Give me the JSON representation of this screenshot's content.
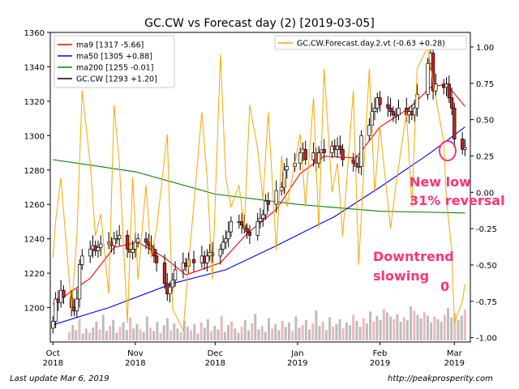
{
  "chart_data": {
    "type": "line",
    "title": "GC.CW vs Forecast day (2)  [2019-03-05]",
    "x_tick_labels": [
      {
        "month": "Oct",
        "year": "2018",
        "date": "2018-10-01"
      },
      {
        "month": "Nov",
        "year": "2018",
        "date": "2018-11-01"
      },
      {
        "month": "Dec",
        "year": "2018",
        "date": "2018-12-01"
      },
      {
        "month": "Jan",
        "year": "2019",
        "date": "2019-01-01"
      },
      {
        "month": "Feb",
        "year": "2019",
        "date": "2019-02-01"
      },
      {
        "month": "Mar",
        "year": "2019",
        "date": "2019-03-01"
      }
    ],
    "xlim": [
      "2018-09-30",
      "2019-03-07"
    ],
    "y_left": {
      "ylim": [
        1180,
        1360
      ],
      "ticks": [
        "1200",
        "1220",
        "1240",
        "1260",
        "1280",
        "1300",
        "1320",
        "1340",
        "1360"
      ]
    },
    "y_right": {
      "ylim": [
        -1.03,
        1.1
      ],
      "ticks": [
        "-1.00",
        "-0.75",
        "-0.50",
        "-0.25",
        "0.00",
        "0.25",
        "0.50",
        "0.75",
        "1.00"
      ]
    },
    "grid": false,
    "legend_left": [
      {
        "label": "ma9 [1317 -5.66]",
        "color": "#ff0000"
      },
      {
        "label": "ma50 [1305 +0.88]",
        "color": "#0000ff"
      },
      {
        "label": "ma200 [1255 -0.01]",
        "color": "#008000"
      },
      {
        "label": "GC.CW [1293 +1.20]",
        "color": "#000000"
      }
    ],
    "legend_right": [
      {
        "label": "GC.CW.Forecast.day.2.vt (-0.63 +0.28)",
        "color": "#ffa500"
      }
    ],
    "series": [
      {
        "name": "GC.CW",
        "kind": "candlestick_close",
        "values": [
          [
            "2018-10-01",
            1192
          ],
          [
            "2018-10-02",
            1205
          ],
          [
            "2018-10-03",
            1203
          ],
          [
            "2018-10-04",
            1210
          ],
          [
            "2018-10-05",
            1206
          ],
          [
            "2018-10-08",
            1200
          ],
          [
            "2018-10-09",
            1198
          ],
          [
            "2018-10-10",
            1205
          ],
          [
            "2018-10-11",
            1225
          ],
          [
            "2018-10-12",
            1230
          ],
          [
            "2018-10-15",
            1234
          ],
          [
            "2018-10-16",
            1236
          ],
          [
            "2018-10-17",
            1233
          ],
          [
            "2018-10-18",
            1235
          ],
          [
            "2018-10-19",
            1237
          ],
          [
            "2018-10-22",
            1238
          ],
          [
            "2018-10-23",
            1236
          ],
          [
            "2018-10-24",
            1240
          ],
          [
            "2018-10-25",
            1240
          ],
          [
            "2018-10-26",
            1242
          ],
          [
            "2018-10-29",
            1234
          ],
          [
            "2018-10-30",
            1232
          ],
          [
            "2018-10-31",
            1234
          ],
          [
            "2018-11-01",
            1238
          ],
          [
            "2018-11-02",
            1240
          ],
          [
            "2018-11-05",
            1238
          ],
          [
            "2018-11-06",
            1236
          ],
          [
            "2018-11-07",
            1234
          ],
          [
            "2018-11-08",
            1230
          ],
          [
            "2018-11-09",
            1226
          ],
          [
            "2018-11-12",
            1214
          ],
          [
            "2018-11-13",
            1208
          ],
          [
            "2018-11-14",
            1212
          ],
          [
            "2018-11-15",
            1216
          ],
          [
            "2018-11-16",
            1222
          ],
          [
            "2018-11-19",
            1226
          ],
          [
            "2018-11-20",
            1224
          ],
          [
            "2018-11-21",
            1228
          ],
          [
            "2018-11-23",
            1226
          ],
          [
            "2018-11-26",
            1230
          ],
          [
            "2018-11-27",
            1226
          ],
          [
            "2018-11-28",
            1230
          ],
          [
            "2018-11-29",
            1232
          ],
          [
            "2018-11-30",
            1230
          ],
          [
            "2018-12-03",
            1234
          ],
          [
            "2018-12-04",
            1238
          ],
          [
            "2018-12-05",
            1240
          ],
          [
            "2018-12-06",
            1244
          ],
          [
            "2018-12-07",
            1250
          ],
          [
            "2018-12-10",
            1250
          ],
          [
            "2018-12-11",
            1248
          ],
          [
            "2018-12-12",
            1246
          ],
          [
            "2018-12-13",
            1244
          ],
          [
            "2018-12-14",
            1242
          ],
          [
            "2018-12-17",
            1250
          ],
          [
            "2018-12-18",
            1252
          ],
          [
            "2018-12-19",
            1254
          ],
          [
            "2018-12-20",
            1262
          ],
          [
            "2018-12-21",
            1260
          ],
          [
            "2018-12-24",
            1268
          ],
          [
            "2018-12-26",
            1270
          ],
          [
            "2018-12-27",
            1280
          ],
          [
            "2018-12-28",
            1282
          ],
          [
            "2018-12-31",
            1284
          ],
          [
            "2019-01-02",
            1290
          ],
          [
            "2019-01-03",
            1292
          ],
          [
            "2019-01-04",
            1286
          ],
          [
            "2019-01-07",
            1290
          ],
          [
            "2019-01-08",
            1284
          ],
          [
            "2019-01-09",
            1290
          ],
          [
            "2019-01-10",
            1292
          ],
          [
            "2019-01-11",
            1290
          ],
          [
            "2019-01-14",
            1294
          ],
          [
            "2019-01-15",
            1292
          ],
          [
            "2019-01-16",
            1294
          ],
          [
            "2019-01-17",
            1292
          ],
          [
            "2019-01-18",
            1286
          ],
          [
            "2019-01-22",
            1284
          ],
          [
            "2019-01-23",
            1282
          ],
          [
            "2019-01-24",
            1282
          ],
          [
            "2019-01-25",
            1300
          ],
          [
            "2019-01-28",
            1306
          ],
          [
            "2019-01-29",
            1314
          ],
          [
            "2019-01-30",
            1316
          ],
          [
            "2019-01-31",
            1322
          ],
          [
            "2019-02-01",
            1318
          ],
          [
            "2019-02-04",
            1316
          ],
          [
            "2019-02-05",
            1314
          ],
          [
            "2019-02-06",
            1312
          ],
          [
            "2019-02-07",
            1312
          ],
          [
            "2019-02-08",
            1316
          ],
          [
            "2019-02-11",
            1312
          ],
          [
            "2019-02-12",
            1314
          ],
          [
            "2019-02-13",
            1312
          ],
          [
            "2019-02-14",
            1316
          ],
          [
            "2019-02-15",
            1324
          ],
          [
            "2019-02-19",
            1342
          ],
          [
            "2019-02-20",
            1348
          ],
          [
            "2019-02-21",
            1326
          ],
          [
            "2019-02-22",
            1330
          ],
          [
            "2019-02-25",
            1328
          ],
          [
            "2019-02-26",
            1330
          ],
          [
            "2019-02-27",
            1322
          ],
          [
            "2019-02-28",
            1316
          ],
          [
            "2019-03-01",
            1298
          ],
          [
            "2019-03-04",
            1292
          ],
          [
            "2019-03-05",
            1293
          ]
        ]
      },
      {
        "name": "ma9",
        "values": [
          [
            "2018-10-01",
            1202
          ],
          [
            "2018-10-15",
            1217
          ],
          [
            "2018-10-24",
            1235
          ],
          [
            "2018-11-02",
            1238
          ],
          [
            "2018-11-12",
            1229
          ],
          [
            "2018-11-20",
            1219
          ],
          [
            "2018-12-03",
            1226
          ],
          [
            "2018-12-13",
            1243
          ],
          [
            "2018-12-24",
            1257
          ],
          [
            "2019-01-02",
            1278
          ],
          [
            "2019-01-11",
            1288
          ],
          [
            "2019-01-23",
            1287
          ],
          [
            "2019-02-01",
            1305
          ],
          [
            "2019-02-12",
            1316
          ],
          [
            "2019-02-20",
            1328
          ],
          [
            "2019-02-26",
            1330
          ],
          [
            "2019-03-05",
            1317
          ]
        ]
      },
      {
        "name": "ma50",
        "values": [
          [
            "2018-10-01",
            1190
          ],
          [
            "2018-10-22",
            1200
          ],
          [
            "2018-11-15",
            1214
          ],
          [
            "2018-12-05",
            1222
          ],
          [
            "2018-12-24",
            1236
          ],
          [
            "2019-01-15",
            1253
          ],
          [
            "2019-02-01",
            1270
          ],
          [
            "2019-02-20",
            1290
          ],
          [
            "2019-03-05",
            1305
          ]
        ]
      },
      {
        "name": "ma200",
        "values": [
          [
            "2018-10-01",
            1286
          ],
          [
            "2018-11-01",
            1279
          ],
          [
            "2018-12-01",
            1266
          ],
          [
            "2019-01-01",
            1260
          ],
          [
            "2019-02-01",
            1256
          ],
          [
            "2019-03-05",
            1255
          ]
        ]
      },
      {
        "name": "GC.CW.Forecast.day.2.vt",
        "axis": "right",
        "values": [
          [
            "2018-10-01",
            -0.45
          ],
          [
            "2018-10-02",
            -0.2
          ],
          [
            "2018-10-04",
            0.1
          ],
          [
            "2018-10-08",
            -0.8
          ],
          [
            "2018-10-10",
            -0.3
          ],
          [
            "2018-10-12",
            0.7
          ],
          [
            "2018-10-15",
            0.2
          ],
          [
            "2018-10-17",
            -0.3
          ],
          [
            "2018-10-19",
            -0.15
          ],
          [
            "2018-10-22",
            -0.7
          ],
          [
            "2018-10-24",
            0.6
          ],
          [
            "2018-10-26",
            0.2
          ],
          [
            "2018-10-29",
            -0.9
          ],
          [
            "2018-10-31",
            0.1
          ],
          [
            "2018-11-02",
            -0.6
          ],
          [
            "2018-11-05",
            0.05
          ],
          [
            "2018-11-07",
            -0.45
          ],
          [
            "2018-11-09",
            -0.25
          ],
          [
            "2018-11-13",
            0.4
          ],
          [
            "2018-11-15",
            -0.8
          ],
          [
            "2018-11-19",
            -0.95
          ],
          [
            "2018-11-21",
            -0.5
          ],
          [
            "2018-11-26",
            0.55
          ],
          [
            "2018-11-28",
            0.1
          ],
          [
            "2018-11-30",
            -0.6
          ],
          [
            "2018-12-03",
            0.95
          ],
          [
            "2018-12-05",
            0.1
          ],
          [
            "2018-12-07",
            -0.1
          ],
          [
            "2018-12-10",
            0.05
          ],
          [
            "2018-12-12",
            -0.25
          ],
          [
            "2018-12-14",
            0.6
          ],
          [
            "2018-12-17",
            0.3
          ],
          [
            "2018-12-19",
            -0.05
          ],
          [
            "2018-12-21",
            0.55
          ],
          [
            "2018-12-24",
            -0.4
          ],
          [
            "2018-12-26",
            0.25
          ],
          [
            "2018-12-28",
            -0.1
          ],
          [
            "2019-01-02",
            0.4
          ],
          [
            "2019-01-04",
            -0.1
          ],
          [
            "2019-01-07",
            0.65
          ],
          [
            "2019-01-09",
            -0.25
          ],
          [
            "2019-01-11",
            0.85
          ],
          [
            "2019-01-14",
            0.0
          ],
          [
            "2019-01-16",
            0.2
          ],
          [
            "2019-01-18",
            -0.3
          ],
          [
            "2019-01-22",
            0.7
          ],
          [
            "2019-01-24",
            -0.5
          ],
          [
            "2019-01-28",
            0.85
          ],
          [
            "2019-01-30",
            0.0
          ],
          [
            "2019-02-01",
            0.45
          ],
          [
            "2019-02-05",
            -0.25
          ],
          [
            "2019-02-07",
            0.05
          ],
          [
            "2019-02-11",
            0.55
          ],
          [
            "2019-02-13",
            -0.1
          ],
          [
            "2019-02-15",
            0.85
          ],
          [
            "2019-02-19",
            1.0
          ],
          [
            "2019-02-21",
            0.75
          ],
          [
            "2019-02-25",
            0.35
          ],
          [
            "2019-02-26",
            -0.05
          ],
          [
            "2019-02-28",
            -0.4
          ],
          [
            "2019-03-01",
            -0.9
          ],
          [
            "2019-03-04",
            -0.75
          ],
          [
            "2019-03-05",
            -0.63
          ]
        ]
      }
    ],
    "volume": {
      "axis": "none",
      "values": [
        10,
        18,
        12,
        25,
        8,
        14,
        9,
        15,
        22,
        13,
        30,
        11,
        17,
        24,
        9,
        16,
        21,
        12,
        27,
        14,
        19,
        13,
        10,
        28,
        15,
        11,
        22,
        9,
        18,
        26,
        12,
        20,
        14,
        10,
        23,
        16,
        12,
        19,
        8,
        21,
        15,
        25,
        11,
        17,
        13,
        29,
        10,
        18,
        22,
        14,
        9,
        16,
        24,
        12,
        20,
        31,
        13,
        17,
        10,
        26,
        14,
        19,
        12,
        23,
        16,
        21,
        11,
        28,
        15,
        18,
        24,
        13,
        20,
        35,
        17,
        22,
        12,
        27,
        16,
        19,
        25,
        14,
        21,
        18,
        30,
        23,
        16,
        26,
        20,
        34,
        22,
        29,
        24,
        37,
        33,
        28,
        25,
        31,
        22,
        27,
        24,
        40,
        35,
        30,
        26,
        33,
        29,
        21,
        28,
        25,
        22,
        30,
        38,
        27,
        32,
        24,
        29,
        36
      ]
    },
    "annotations": [
      {
        "text": "New low",
        "color": "#ff3377"
      },
      {
        "text": "31% reversal",
        "color": "#ff3377"
      },
      {
        "text": "Downtrend",
        "color": "#ff3377"
      },
      {
        "text": "slowing",
        "color": "#ff3377"
      },
      {
        "text": "0",
        "color": "#ff3377"
      }
    ]
  },
  "footer": {
    "left": "Last update Mar  6, 2019",
    "right": "http://peakprosperity.com"
  }
}
